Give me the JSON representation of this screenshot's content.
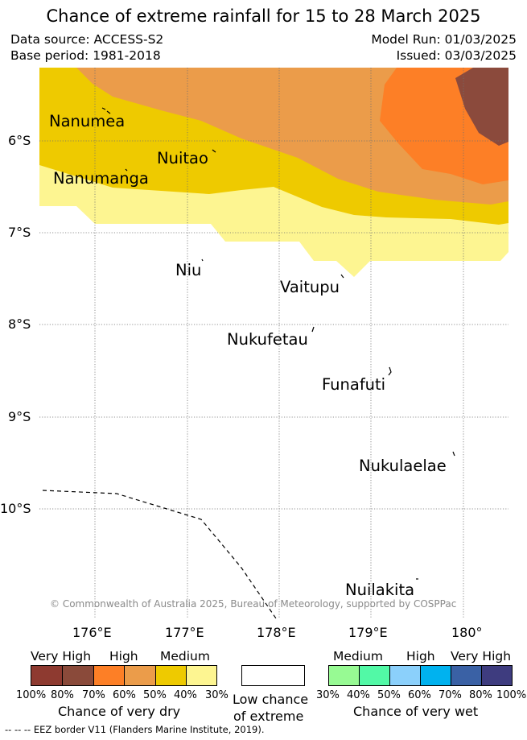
{
  "title": "Chance of extreme rainfall for 15 to 28 March 2025",
  "header": {
    "data_source": "Data source: ACCESS-S2",
    "base_period": "Base period: 1981-2018",
    "model_run": "Model Run: 01/03/2025",
    "issued": "Issued: 03/03/2025"
  },
  "map": {
    "lat_ticks": [
      "6°S",
      "7°S",
      "8°S",
      "9°S",
      "10°S"
    ],
    "lon_ticks": [
      "176°E",
      "177°E",
      "178°E",
      "179°E",
      "180°"
    ],
    "places": [
      "Nanumea",
      "Nuitao",
      "Nanumanga",
      "Niu",
      "Vaitupu",
      "Nukufetau",
      "Funafuti",
      "Nukulaelae",
      "Nuilakita"
    ],
    "copyright": "© Commonwealth of Australia 2025, Bureau of Meteorology, supported by COSPPac",
    "colors": {
      "very_high_dry": "#8b4a3c",
      "high_dry": "#fd7f26",
      "medium_dry_50_60": "#eb9c4a",
      "medium_dry": "#eeca00",
      "low_dry": "#fdf591"
    }
  },
  "legend": {
    "dry": {
      "labels": [
        "Very High",
        "High",
        "Medium"
      ],
      "caption": "Chance of very dry",
      "pcts": [
        "100%",
        "80%",
        "70%",
        "60%",
        "50%",
        "40%",
        "30%"
      ],
      "colors": [
        "#8e3a30",
        "#8a4a3a",
        "#fd7f26",
        "#eb9c4a",
        "#eeca00",
        "#fdf591"
      ]
    },
    "low": {
      "caption_1": "Low chance",
      "caption_2": "of extreme"
    },
    "wet": {
      "labels": [
        "Medium",
        "High",
        "Very High"
      ],
      "caption": "Chance of very wet",
      "pcts": [
        "30%",
        "40%",
        "50%",
        "60%",
        "70%",
        "80%",
        "100%"
      ],
      "colors": [
        "#97fa93",
        "#52f9a6",
        "#8bd0fb",
        "#00b2ef",
        "#3a61a5",
        "#3e3c7f"
      ]
    }
  },
  "footer": {
    "eez": "--  --  -- EEZ border V11 (Flanders Marine Institute, 2019)."
  }
}
